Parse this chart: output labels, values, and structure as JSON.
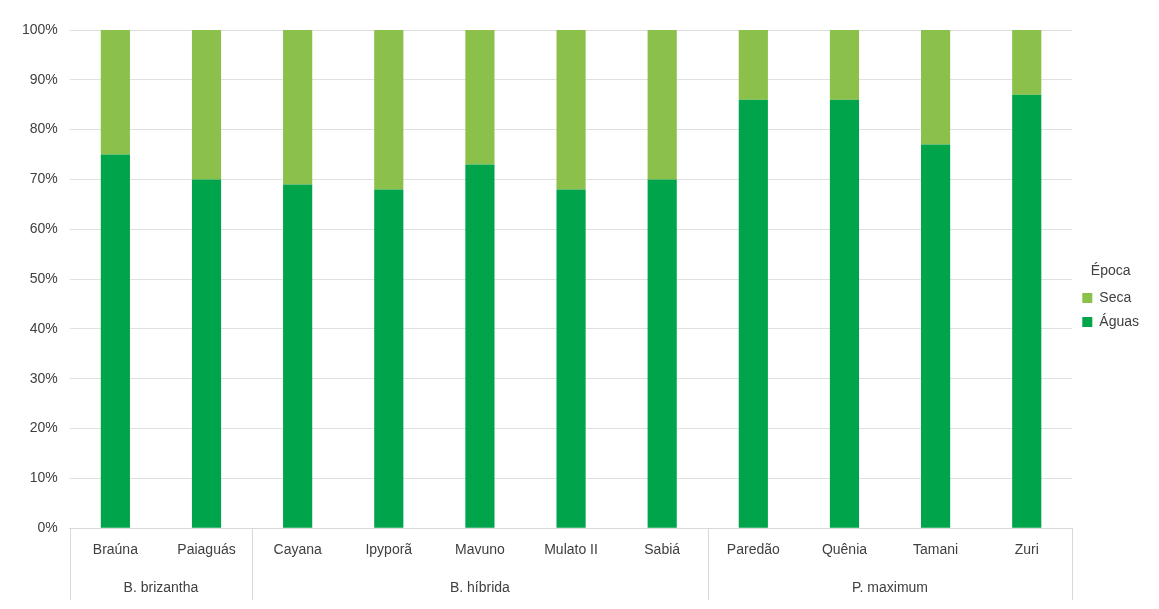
{
  "chart_data": {
    "type": "bar",
    "stacked": true,
    "legend_title": "Época",
    "legend": "right",
    "grid": "y",
    "categories": [
      "Braúna",
      "Paiaguás",
      "Cayana",
      "Ipyporã",
      "Mavuno",
      "Mulato II",
      "Sabiá",
      "Paredão",
      "Quênia",
      "Tamani",
      "Zuri"
    ],
    "series": [
      {
        "name": "Águas",
        "color": "#00a44a",
        "values": [
          75,
          70,
          69,
          68,
          73,
          68,
          70,
          86,
          86,
          77,
          87
        ]
      },
      {
        "name": "Seca",
        "color": "#8bc04a",
        "values": [
          25,
          30,
          31,
          32,
          27,
          32,
          30,
          14,
          14,
          23,
          13
        ]
      }
    ],
    "ylim": [
      0,
      100
    ],
    "yticks": [
      {
        "value": 0,
        "label": "0%"
      },
      {
        "value": 10,
        "label": "10%"
      },
      {
        "value": 20,
        "label": "20%"
      },
      {
        "value": 30,
        "label": "30%"
      },
      {
        "value": 40,
        "label": "40%"
      },
      {
        "value": 50,
        "label": "50%"
      },
      {
        "value": 60,
        "label": "60%"
      },
      {
        "value": 70,
        "label": "70%"
      },
      {
        "value": 80,
        "label": "80%"
      },
      {
        "value": 90,
        "label": "90%"
      },
      {
        "value": 100,
        "label": "100%"
      }
    ],
    "annotations": [
      "B. brizantha",
      "B. híbrida",
      "P. maximum"
    ]
  }
}
